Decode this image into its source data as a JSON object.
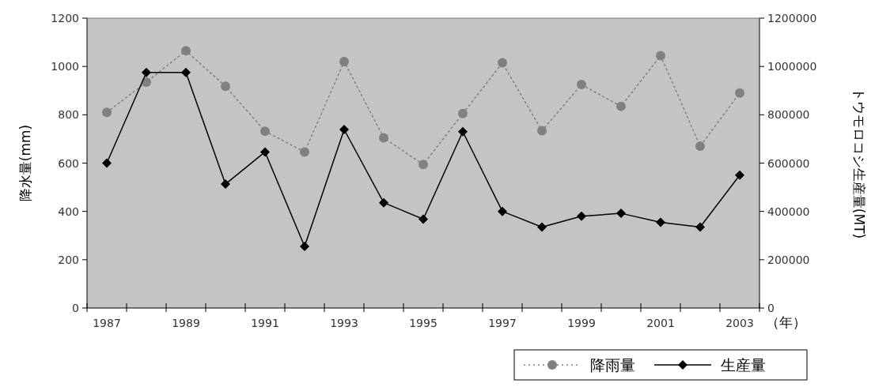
{
  "chart_data": {
    "type": "line",
    "categories": [
      "1987",
      null,
      "1989",
      null,
      "1991",
      null,
      "1993",
      null,
      "1995",
      null,
      "1997",
      null,
      "1999",
      null,
      "2001",
      null,
      "2003"
    ],
    "ylabel": "降水量(mm)",
    "y2label": "トウモロコシ生産量(MT)",
    "ylim": [
      0,
      1200
    ],
    "yticks": [
      0,
      200,
      400,
      600,
      800,
      1000,
      1200
    ],
    "y2lim": [
      0,
      1200000
    ],
    "y2ticks": [
      0,
      200000,
      400000,
      600000,
      800000,
      1000000,
      1200000
    ],
    "grid": false,
    "legend": "bottom right",
    "annotations": [
      "（年）"
    ],
    "series": [
      {
        "name": "降雨量",
        "color": "#808080",
        "marker": "circle",
        "line_style": "dotted",
        "values": [
          810,
          935,
          1065,
          918,
          732,
          646,
          1020,
          705,
          594,
          805,
          1015,
          734,
          925,
          835,
          1045,
          670,
          890
        ]
      },
      {
        "name": "生産量",
        "color": "#000000",
        "marker": "diamond",
        "line_style": "solid",
        "axis": "y2",
        "values": [
          600000,
          975000,
          975000,
          513000,
          646000,
          255000,
          739000,
          436000,
          368000,
          730000,
          400000,
          335000,
          380000,
          392000,
          355000,
          335000,
          550000
        ]
      }
    ]
  }
}
